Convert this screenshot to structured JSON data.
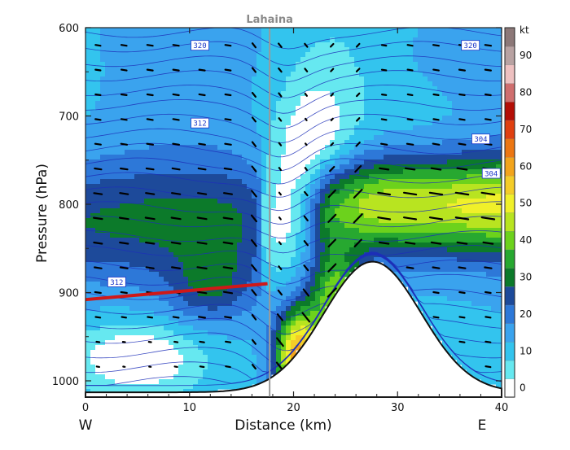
{
  "chart_data": {
    "type": "heatmap",
    "title": "",
    "xlabel": "Distance (km)",
    "ylabel": "Pressure (hPa)",
    "xlim": [
      0,
      40
    ],
    "ylim": [
      1015,
      600
    ],
    "x_ticks": [
      "0",
      "10",
      "20",
      "30",
      "40"
    ],
    "y_ticks": [
      "600",
      "700",
      "800",
      "900",
      "1000"
    ],
    "x_tick_values": [
      0,
      10,
      20,
      30,
      40
    ],
    "y_tick_values": [
      600,
      700,
      800,
      900,
      1000
    ],
    "x_end_labels": {
      "left": "W",
      "right": "E"
    },
    "location_marker": {
      "label": "Lahaina",
      "x_km": 17.7
    },
    "inversion_line": {
      "x": [
        0,
        17.5
      ],
      "pressure": [
        908,
        890
      ]
    },
    "colorbar": {
      "unit": "kt",
      "tick_labels": [
        "0",
        "10",
        "20",
        "30",
        "40",
        "50",
        "60",
        "70",
        "80",
        "90"
      ],
      "tick_values": [
        0,
        10,
        20,
        30,
        40,
        50,
        60,
        70,
        80,
        90
      ],
      "bounds": [
        0,
        5,
        10,
        15,
        20,
        25,
        30,
        35,
        40,
        45,
        50,
        55,
        60,
        65,
        70,
        75,
        80,
        85,
        90,
        95,
        100
      ],
      "colors": [
        "#ffffff",
        "#66e8f0",
        "#33c4ee",
        "#3aa3ee",
        "#2d78d8",
        "#1d4a9a",
        "#0c7a2a",
        "#27a830",
        "#6cd21c",
        "#b8e420",
        "#f0f02a",
        "#f4cc28",
        "#f2a41c",
        "#ec7612",
        "#e04010",
        "#b40e06",
        "#cf6e6e",
        "#edc0c0",
        "#b8a2a2",
        "#8c7878"
      ]
    },
    "isentrope_labels": [
      "320",
      "312",
      "312",
      "304",
      "304",
      "320"
    ],
    "grid": false
  }
}
